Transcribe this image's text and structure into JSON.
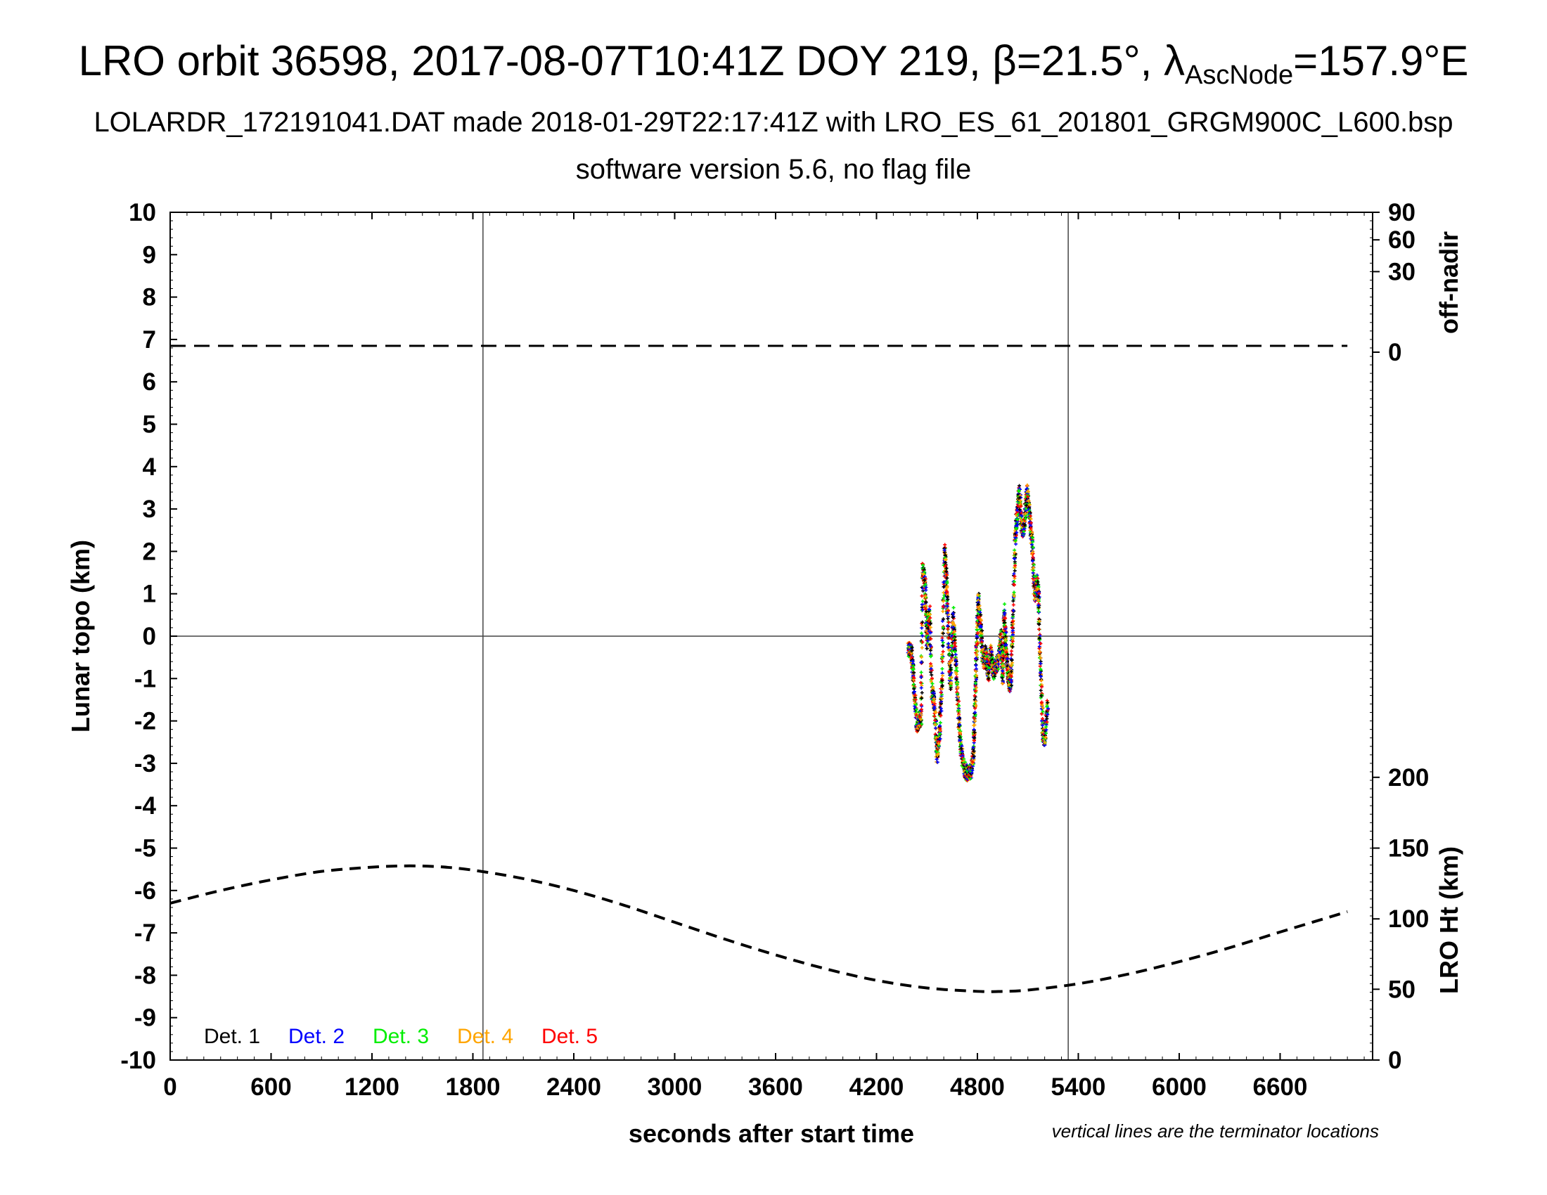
{
  "title": {
    "prefix": "LRO orbit 36598, 2017-08-07T10:41Z DOY 219, β=21.5°, λ",
    "subscript": "AscNode",
    "suffix": "=157.9°E"
  },
  "subtitle": "LOLARDR_172191041.DAT made 2018-01-29T22:17:41Z with LRO_ES_61_201801_GRGM900C_L600.bsp",
  "subtitle2": "software version 5.6, no flag file",
  "chart_data": {
    "type": "scatter",
    "xlabel": "seconds after start time",
    "ylabel": "Lunar topo (km)",
    "right_label_top": "off-nadir",
    "right_label_bottom": "LRO Ht (km)",
    "note": "vertical lines are the terminator locations",
    "xlim": [
      0,
      7150
    ],
    "ylim": [
      -10,
      10
    ],
    "x_ticks": [
      0,
      600,
      1200,
      1800,
      2400,
      3000,
      3600,
      4200,
      4800,
      5400,
      6000,
      6600
    ],
    "y_ticks": [
      10,
      9,
      8,
      7,
      6,
      5,
      4,
      3,
      2,
      1,
      0,
      -1,
      -2,
      -3,
      -4,
      -5,
      -6,
      -7,
      -8,
      -9,
      -10
    ],
    "off_nadir_ticks": [
      {
        "label": "90",
        "y": 10
      },
      {
        "label": "60",
        "y": 9.35
      },
      {
        "label": "30",
        "y": 8.6
      },
      {
        "label": "0",
        "y": 6.7
      }
    ],
    "ht_ticks": [
      {
        "label": "200",
        "y": -3.33
      },
      {
        "label": "150",
        "y": -5.0
      },
      {
        "label": "100",
        "y": -6.67
      },
      {
        "label": "50",
        "y": -8.33
      },
      {
        "label": "0",
        "y": -10.0
      }
    ],
    "terminators": [
      1860,
      5340
    ],
    "zero_line": 0,
    "off_nadir_series": {
      "x": [
        0,
        7000
      ],
      "y": [
        6.85,
        6.85
      ]
    },
    "ht_series": {
      "x": [
        0,
        300,
        600,
        900,
        1200,
        1400,
        1600,
        1800,
        2100,
        2400,
        2700,
        3000,
        3300,
        3600,
        3900,
        4200,
        4500,
        4800,
        4950,
        5100,
        5400,
        5700,
        6000,
        6300,
        6600,
        6900,
        7000
      ],
      "y": [
        -6.3,
        -6.0,
        -5.75,
        -5.55,
        -5.45,
        -5.42,
        -5.44,
        -5.52,
        -5.72,
        -6.0,
        -6.35,
        -6.75,
        -7.15,
        -7.52,
        -7.85,
        -8.12,
        -8.3,
        -8.38,
        -8.38,
        -8.35,
        -8.2,
        -7.97,
        -7.68,
        -7.35,
        -6.98,
        -6.62,
        -6.5
      ]
    },
    "series": [
      {
        "name": "Det. 1",
        "color": "#000000"
      },
      {
        "name": "Det. 2",
        "color": "#0000ff"
      },
      {
        "name": "Det. 3",
        "color": "#00ee00"
      },
      {
        "name": "Det. 4",
        "color": "#ffa500"
      },
      {
        "name": "Det. 5",
        "color": "#ff0000"
      }
    ],
    "topo_profile": [
      [
        4390,
        -0.3
      ],
      [
        4410,
        -0.4
      ],
      [
        4420,
        -1.0
      ],
      [
        4440,
        -2.1
      ],
      [
        4455,
        -2.0
      ],
      [
        4465,
        -1.9
      ],
      [
        4475,
        1.6
      ],
      [
        4490,
        1.2
      ],
      [
        4500,
        -0.2
      ],
      [
        4515,
        0.6
      ],
      [
        4530,
        -1.3
      ],
      [
        4545,
        -1.6
      ],
      [
        4560,
        -2.8
      ],
      [
        4575,
        -2.3
      ],
      [
        4590,
        -0.9
      ],
      [
        4605,
        2.0
      ],
      [
        4615,
        1.4
      ],
      [
        4625,
        0.4
      ],
      [
        4640,
        -1.2
      ],
      [
        4655,
        0.5
      ],
      [
        4670,
        -0.5
      ],
      [
        4685,
        -1.6
      ],
      [
        4700,
        -2.6
      ],
      [
        4720,
        -3.1
      ],
      [
        4740,
        -3.25
      ],
      [
        4760,
        -3.2
      ],
      [
        4775,
        -2.9
      ],
      [
        4785,
        -1.8
      ],
      [
        4795,
        -0.4
      ],
      [
        4805,
        0.9
      ],
      [
        4820,
        0.2
      ],
      [
        4835,
        -0.6
      ],
      [
        4850,
        -0.4
      ],
      [
        4865,
        -0.9
      ],
      [
        4880,
        -0.3
      ],
      [
        4895,
        -0.9
      ],
      [
        4910,
        -0.7
      ],
      [
        4925,
        -0.6
      ],
      [
        4940,
        0.0
      ],
      [
        4950,
        -1.0
      ],
      [
        4960,
        0.6
      ],
      [
        4970,
        -0.3
      ],
      [
        4980,
        -0.8
      ],
      [
        4990,
        -1.2
      ],
      [
        5000,
        -1.0
      ],
      [
        5010,
        0.3
      ],
      [
        5025,
        2.3
      ],
      [
        5035,
        2.8
      ],
      [
        5050,
        3.4
      ],
      [
        5065,
        2.5
      ],
      [
        5080,
        2.6
      ],
      [
        5095,
        3.5
      ],
      [
        5110,
        2.9
      ],
      [
        5125,
        2.2
      ],
      [
        5140,
        1.0
      ],
      [
        5155,
        1.3
      ],
      [
        5165,
        0.8
      ],
      [
        5175,
        -0.8
      ],
      [
        5190,
        -2.3
      ],
      [
        5200,
        -2.45
      ],
      [
        5220,
        -1.5
      ]
    ]
  }
}
